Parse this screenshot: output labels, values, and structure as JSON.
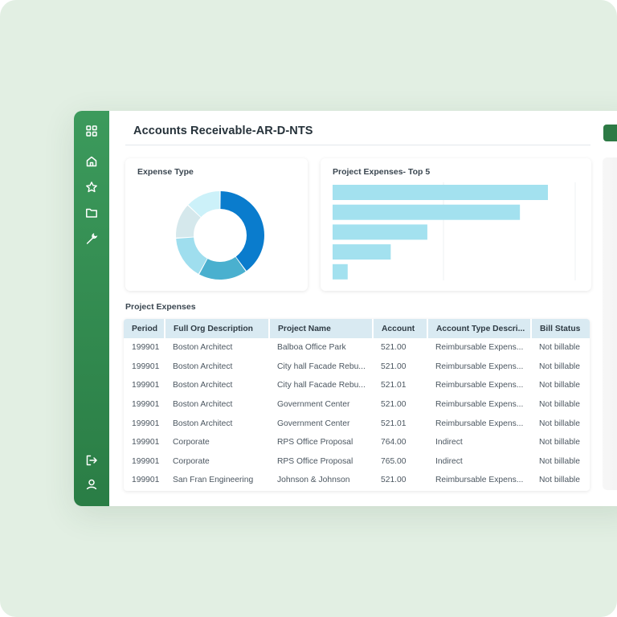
{
  "page": {
    "title": "Accounts Receivable-AR-D-NTS"
  },
  "sidebar": {
    "top_icons": [
      "grid-icon",
      "home-icon",
      "star-icon",
      "folder-icon",
      "wrench-icon"
    ],
    "bottom_icons": [
      "logout-icon",
      "user-icon"
    ]
  },
  "colors": {
    "sidebar": "#2f8a4f",
    "background": "#e2efe3",
    "table_header": "#d9eaf2",
    "bar": "#a3e1ef",
    "donut": [
      "#0a7ccd",
      "#4ab0cf",
      "#9fdeee",
      "#d5e8ec",
      "#ccf1f9"
    ]
  },
  "expense_type": {
    "title": "Expense Type",
    "chart_data": {
      "type": "pie",
      "variant": "donut",
      "title": "Expense Type",
      "values": [
        40,
        18,
        16,
        13,
        13
      ]
    }
  },
  "project_expenses_top5": {
    "title": "Project Expenses- Top 5",
    "chart_data": {
      "type": "bar",
      "orientation": "horizontal",
      "title": "Project Expenses- Top 5",
      "values": [
        100,
        87,
        44,
        27,
        7
      ]
    }
  },
  "project_expenses": {
    "title": "Project Expenses",
    "columns": [
      "Period",
      "Full Org Description",
      "Project Name",
      "Account",
      "Account Type Descri...",
      "Bill Status"
    ],
    "rows": [
      [
        "199901",
        "Boston Architect",
        "Balboa Office Park",
        "521.00",
        "Reimbursable Expens...",
        "Not billable"
      ],
      [
        "199901",
        "Boston Architect",
        "City hall Facade Rebu...",
        "521.00",
        "Reimbursable Expens...",
        "Not billable"
      ],
      [
        "199901",
        "Boston Architect",
        "City hall Facade Rebu...",
        "521.01",
        "Reimbursable Expens...",
        "Not billable"
      ],
      [
        "199901",
        "Boston Architect",
        "Government Center",
        "521.00",
        "Reimbursable Expens...",
        "Not billable"
      ],
      [
        "199901",
        "Boston Architect",
        "Government Center",
        "521.01",
        "Reimbursable Expens...",
        "Not billable"
      ],
      [
        "199901",
        "Corporate",
        "RPS Office Proposal",
        "764.00",
        "Indirect",
        "Not billable"
      ],
      [
        "199901",
        "Corporate",
        "RPS Office Proposal",
        "765.00",
        "Indirect",
        "Not billable"
      ],
      [
        "199901",
        "San Fran Engineering",
        "Johnson & Johnson",
        "521.00",
        "Reimbursable Expens...",
        "Not billable"
      ]
    ]
  }
}
